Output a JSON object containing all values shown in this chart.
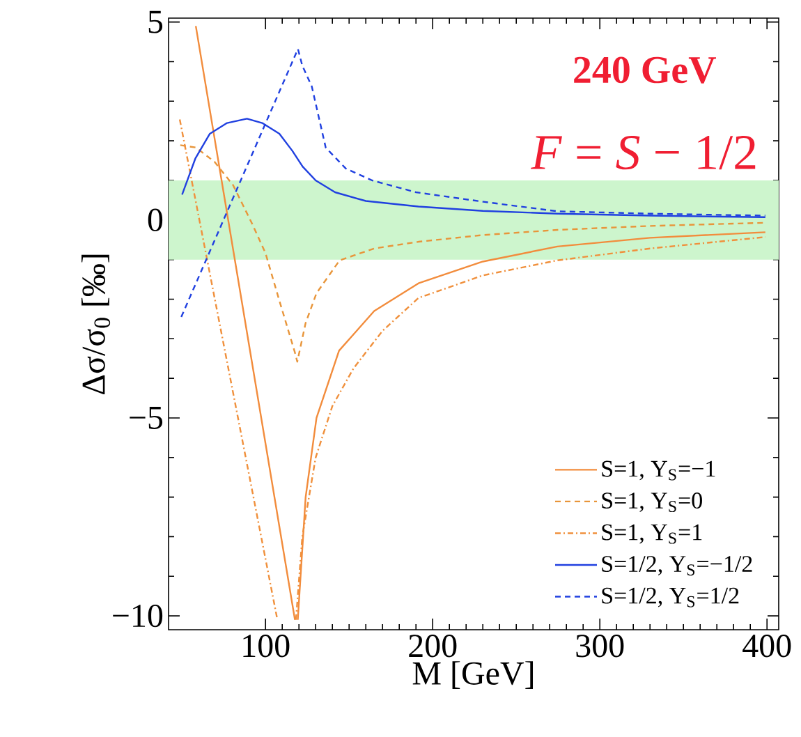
{
  "chart_data": {
    "type": "line",
    "xlabel": "M [GeV]",
    "ylabel": "Δσ/σ$_{0}$ [‰]",
    "annotations": [
      "**240 GeV**",
      "*F* = *S* − 1/2"
    ],
    "xlim": [
      42,
      407
    ],
    "ylim": [
      -10.35,
      5.1
    ],
    "xticks": [
      100,
      200,
      300,
      400
    ],
    "yticks": [
      {
        "value": -10,
        "label": "−10"
      },
      {
        "value": -5,
        "label": "−5"
      },
      0,
      5
    ],
    "bands": [
      {
        "axis": "y",
        "from": -1,
        "to": 1,
        "color": "#cdf5cd"
      }
    ],
    "legend": "bottom right",
    "grid": false,
    "series": [
      {
        "name": "S=1, Y$_{S}$=−1",
        "color": "#f28c3c",
        "line_style": "solid",
        "x": [
          58.3,
          117.6,
          118.6,
          119.3,
          124,
          130.5,
          144,
          165,
          191.5,
          230,
          274.6,
          330,
          399
        ],
        "values": [
          4.9,
          -10.1,
          null,
          -10.1,
          -7.0,
          -5.0,
          -3.3,
          -2.3,
          -1.6,
          -1.05,
          -0.67,
          -0.45,
          -0.31
        ]
      },
      {
        "name": "S=1, Y$_{S}$=0",
        "color": "#e8953a",
        "line_style": "dashed",
        "x": [
          49,
          58.4,
          69.5,
          80.6,
          91.7,
          100,
          108.3,
          117.6,
          119,
          124,
          130.5,
          144.3,
          165,
          191.5,
          230,
          274.6,
          330,
          399
        ],
        "values": [
          1.89,
          1.83,
          1.47,
          0.88,
          -0.07,
          -0.84,
          -2.04,
          -3.35,
          -3.58,
          -2.6,
          -1.85,
          -1.02,
          -0.72,
          -0.55,
          -0.38,
          -0.25,
          -0.15,
          -0.07
        ]
      },
      {
        "name": "S=1, Y$_{S}$=1",
        "color": "#f0903c",
        "line_style": "dashdotted",
        "x": [
          48.7,
          107.1,
          112,
          118.2,
          122,
          130,
          140,
          152.6,
          170,
          191.5,
          230,
          274.6,
          330,
          399
        ],
        "values": [
          2.54,
          -10.1,
          null,
          -10.1,
          -8.0,
          -6.0,
          -4.7,
          -3.75,
          -2.8,
          -1.97,
          -1.4,
          -1.02,
          -0.72,
          -0.43
        ]
      },
      {
        "name": "S=1/2, Y$_{S}$=−1/2",
        "color": "#2040e0",
        "line_style": "solid",
        "x": [
          50.1,
          58,
          66.7,
          77,
          88.9,
          98,
          108.3,
          116,
          122.2,
          130,
          141.6,
          160,
          191.5,
          230,
          274.6,
          330,
          399
        ],
        "values": [
          0.64,
          1.55,
          2.18,
          2.45,
          2.56,
          2.45,
          2.18,
          1.75,
          1.35,
          1.0,
          0.7,
          0.48,
          0.34,
          0.23,
          0.16,
          0.11,
          0.07
        ]
      },
      {
        "name": "S=1/2, Y$_{S}$=1/2",
        "color": "#2040e0",
        "line_style": "dashed",
        "x": [
          49.6,
          119.4,
          122,
          127.7,
          136,
          148,
          163.8,
          190,
          230.3,
          274.6,
          330,
          399
        ],
        "values": [
          -2.45,
          4.32,
          3.9,
          3.37,
          1.83,
          1.3,
          1.0,
          0.7,
          0.46,
          0.22,
          0.16,
          0.11
        ]
      }
    ]
  }
}
